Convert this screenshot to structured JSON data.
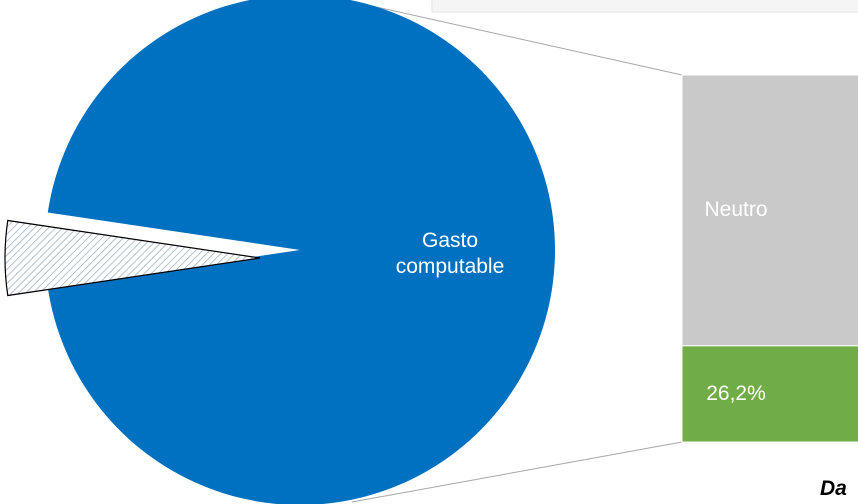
{
  "chart_data": {
    "type": "pie-of-bar",
    "pie": {
      "categories": [
        "Gasto computable",
        null
      ],
      "values": [
        95.3,
        4.7
      ],
      "colors": [
        "#0070c0",
        "hatch"
      ]
    },
    "bar": {
      "categories": [
        "Neutro",
        null
      ],
      "values": [
        73.8,
        26.2
      ],
      "value_labels": [
        null,
        "26,2%"
      ],
      "colors": [
        "#c9c9c9",
        "#70ad47"
      ]
    },
    "note": "Da"
  }
}
